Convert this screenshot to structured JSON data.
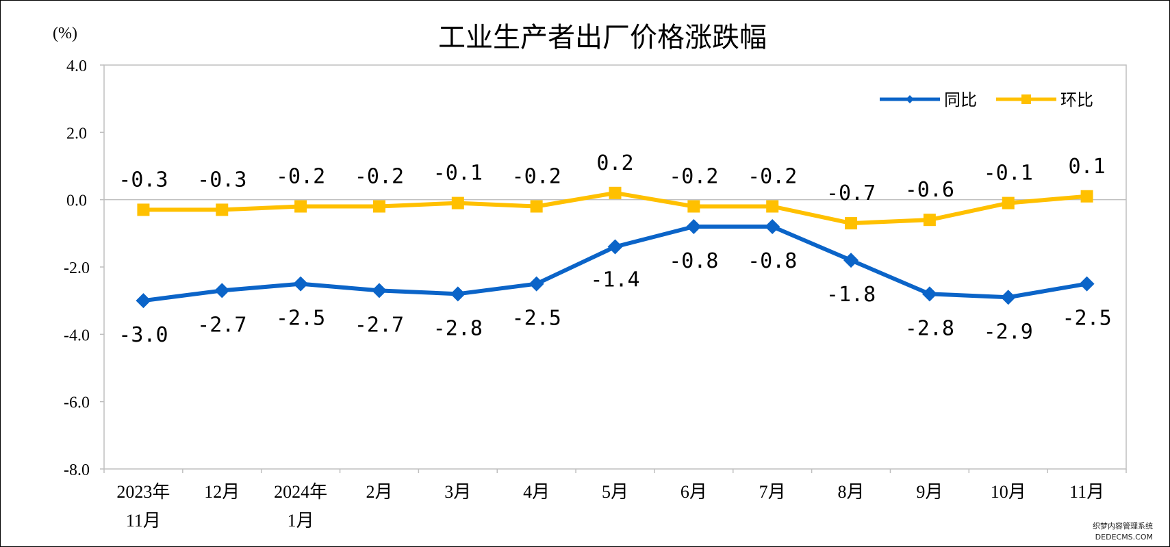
{
  "chart_data": {
    "type": "line",
    "title": "工业生产者出厂价格涨跌幅",
    "unit_label": "(%)",
    "categories": [
      [
        "2023年",
        "11月"
      ],
      [
        "12月"
      ],
      [
        "2024年",
        "1月"
      ],
      [
        "2月"
      ],
      [
        "3月"
      ],
      [
        "4月"
      ],
      [
        "5月"
      ],
      [
        "6月"
      ],
      [
        "7月"
      ],
      [
        "8月"
      ],
      [
        "9月"
      ],
      [
        "10月"
      ],
      [
        "11月"
      ]
    ],
    "ylim": [
      -8.0,
      4.0
    ],
    "yticks": [
      4.0,
      2.0,
      0.0,
      -2.0,
      -4.0,
      -6.0,
      -8.0
    ],
    "ytick_labels": [
      "4.0",
      "2.0",
      "0.0",
      "-2.0",
      "-4.0",
      "-6.0",
      "-8.0"
    ],
    "legend_position": "top-right",
    "series": [
      {
        "name": "同比",
        "color": "#0B64C8",
        "marker": "diamond",
        "values": [
          -3.0,
          -2.7,
          -2.5,
          -2.7,
          -2.8,
          -2.5,
          -1.4,
          -0.8,
          -0.8,
          -1.8,
          -2.8,
          -2.9,
          -2.5
        ],
        "labels": [
          "-3.0",
          "-2.7",
          "-2.5",
          "-2.7",
          "-2.8",
          "-2.5",
          "-1.4",
          "-0.8",
          "-0.8",
          "-1.8",
          "-2.8",
          "-2.9",
          "-2.5"
        ]
      },
      {
        "name": "环比",
        "color": "#FFC000",
        "marker": "square",
        "values": [
          -0.3,
          -0.3,
          -0.2,
          -0.2,
          -0.1,
          -0.2,
          0.2,
          -0.2,
          -0.2,
          -0.7,
          -0.6,
          -0.1,
          0.1
        ],
        "labels": [
          "-0.3",
          "-0.3",
          "-0.2",
          "-0.2",
          "-0.1",
          "-0.2",
          "0.2",
          "-0.2",
          "-0.2",
          "-0.7",
          "-0.6",
          "-0.1",
          "0.1"
        ]
      }
    ],
    "grid": false
  },
  "watermark": {
    "line1": "织梦内容管理系统",
    "line2": "DEDECMS.COM"
  }
}
